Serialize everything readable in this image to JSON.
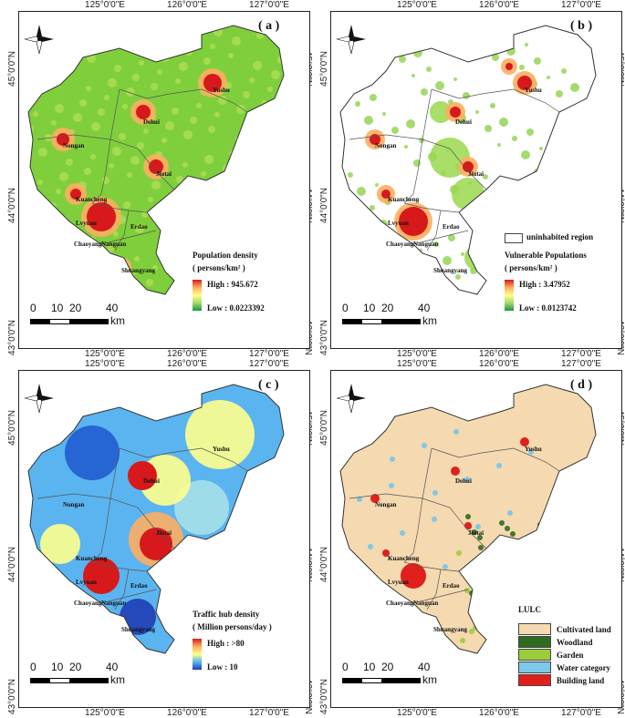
{
  "axes": {
    "lon_ticks": [
      "125°0'0\"E",
      "126°0'0\"E",
      "127°0'0\"E"
    ],
    "lat_ticks": [
      "45°0'0\"N",
      "44°0'0\"N",
      "43°0'0\"N"
    ]
  },
  "counties": [
    "Yushu",
    "Dehui",
    "Nongan",
    "Jiutai",
    "Kuancheng",
    "Lvyuan",
    "Erdao",
    "Chaoyang",
    "Nanguan",
    "Shuangyang"
  ],
  "scale": {
    "labels": [
      "0",
      "10",
      "20",
      "40"
    ],
    "unit": "km"
  },
  "panels": [
    {
      "label": "( a )",
      "legend_title": "Population density",
      "legend_unit": "( persons/km² )",
      "high": "High : 945.672",
      "low": "Low : 0.0223392",
      "colors": [
        "#d7191c",
        "#fdae61",
        "#ffff8c",
        "#a6d96a",
        "#1a9641"
      ]
    },
    {
      "label": "( b )",
      "legend_title": "Vulnerable Populations",
      "legend_unit": "( persons/km² )",
      "high": "High : 3.47952",
      "low": "Low : 0.0123742",
      "uninhabited": "uninhabited region",
      "colors": [
        "#d7191c",
        "#fdae61",
        "#ffff8c",
        "#a6d96a",
        "#1a9641"
      ]
    },
    {
      "label": "( c )",
      "legend_title": "Traffic hub density",
      "legend_unit": "( Million persons/day )",
      "high": "High : >80",
      "low": "Low : 10",
      "colors": [
        "#d7191c",
        "#fdae61",
        "#ffff8c",
        "#5ab4f0",
        "#1f3cb4"
      ]
    },
    {
      "label": "( d )",
      "legend_title": "LULC",
      "classes": [
        {
          "name": "Cultivated land",
          "color": "#f5d9b0"
        },
        {
          "name": "Woodland",
          "color": "#2f6b1f"
        },
        {
          "name": "Garden",
          "color": "#9ccc3c"
        },
        {
          "name": "Water category",
          "color": "#7ec8e8"
        },
        {
          "name": "Building land",
          "color": "#e0201c"
        }
      ]
    }
  ]
}
